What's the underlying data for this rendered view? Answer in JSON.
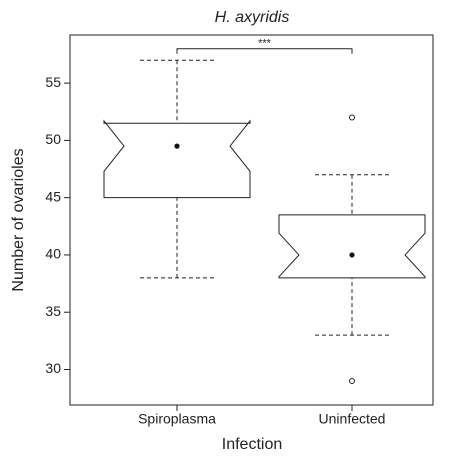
{
  "chart_data": {
    "type": "box",
    "title": "H. axyridis",
    "x_label": "Infection",
    "y_label": "Number of ovarioles",
    "categories": [
      "Spiroplasma",
      "Uninfected"
    ],
    "boxes": [
      {
        "whislo": 38,
        "q1": 45,
        "med": 49.5,
        "q3": 51.5,
        "whishi": 57,
        "notch_lo": 47.3,
        "notch_hi": 51.7,
        "fliers": []
      },
      {
        "whislo": 33,
        "q1": 38,
        "med": 40,
        "q3": 43.5,
        "whishi": 47,
        "notch_lo": 38.1,
        "notch_hi": 41.9,
        "fliers": [
          52,
          29
        ]
      }
    ],
    "annotation": {
      "text": "***",
      "y": 58
    },
    "ylim": [
      26.9,
      59.2
    ],
    "yticks": [
      30,
      35,
      40,
      45,
      50,
      55
    ]
  }
}
